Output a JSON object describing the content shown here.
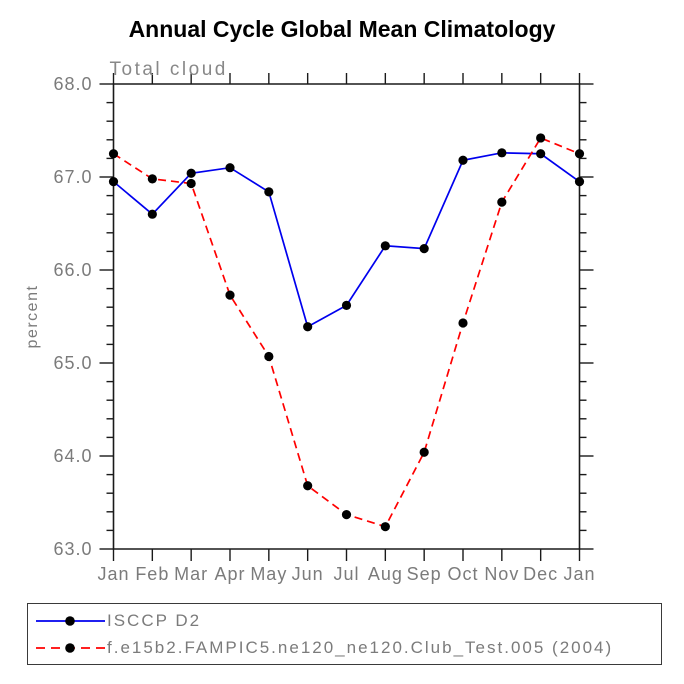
{
  "header": {
    "title": "Annual Cycle Global Mean Climatology"
  },
  "chart_data": {
    "type": "line",
    "title": "Annual Cycle Global Mean Climatology",
    "subtitle": "Total cloud",
    "ylabel": "percent",
    "x_tick_labels": [
      "Jan",
      "Feb",
      "Mar",
      "Apr",
      "May",
      "Jun",
      "Jul",
      "Aug",
      "Sep",
      "Oct",
      "Nov",
      "Dec",
      "Jan"
    ],
    "y_tick_labels": [
      "63.0",
      "64.0",
      "65.0",
      "66.0",
      "67.0",
      "68.0"
    ],
    "ylim": [
      63.0,
      68.0
    ],
    "y_major_step": 1.0,
    "y_minor_step": 0.2,
    "grid": false,
    "legend_position": "bottom-left-box",
    "axis_color": "#1a1a1a",
    "label_color": "#7b7b7b",
    "subtitle_color": "#888888",
    "marker_color": "#000000",
    "series": [
      {
        "name": "ISCCP D2",
        "color": "#0000ee",
        "line_style": "solid",
        "marker": "filled-circle",
        "values": [
          66.95,
          66.6,
          67.04,
          67.1,
          66.84,
          65.39,
          65.62,
          66.26,
          66.23,
          67.18,
          67.26,
          67.25,
          66.95
        ]
      },
      {
        "name": "f.e15b2.FAMPIC5.ne120_ne120.Club_Test.005 (2004)",
        "color": "#ff0000",
        "line_style": "dashed",
        "marker": "filled-circle",
        "values": [
          67.25,
          66.98,
          66.93,
          65.73,
          65.07,
          63.68,
          63.37,
          63.24,
          64.04,
          65.43,
          66.73,
          67.42,
          67.25
        ]
      }
    ]
  }
}
